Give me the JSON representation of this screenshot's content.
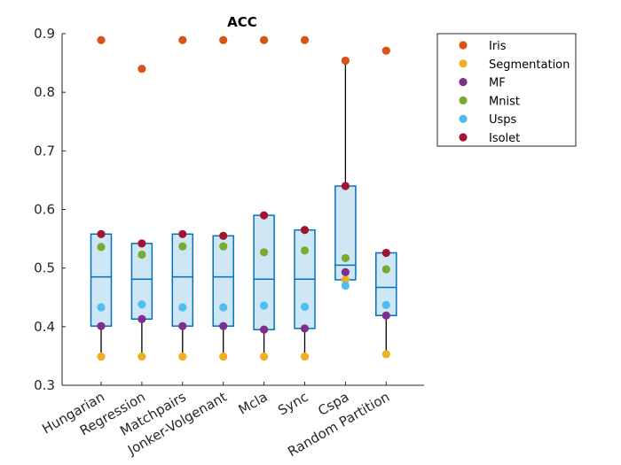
{
  "chart_data": {
    "type": "box+scatter",
    "title": "ACC",
    "xlabel": "",
    "ylabel": "",
    "ylim": [
      0.3,
      0.9
    ],
    "yticks": [
      "0.3",
      "0.4",
      "0.5",
      "0.6",
      "0.7",
      "0.8",
      "0.9"
    ],
    "categories": [
      "Hungarian",
      "Regression",
      "Matchpairs",
      "Jonker-Volgenant",
      "Mcla",
      "Sync",
      "Cspa",
      "Random Partition"
    ],
    "series": [
      {
        "name": "Iris",
        "color": "#D95319",
        "values": [
          0.889,
          0.84,
          0.889,
          0.889,
          0.889,
          0.889,
          0.854,
          0.871
        ]
      },
      {
        "name": "Segmentation",
        "color": "#EDB120",
        "values": [
          0.349,
          0.349,
          0.349,
          0.349,
          0.349,
          0.349,
          0.48,
          0.353
        ]
      },
      {
        "name": "MF",
        "color": "#7E2F8E",
        "values": [
          0.401,
          0.413,
          0.401,
          0.401,
          0.395,
          0.397,
          0.493,
          0.419
        ]
      },
      {
        "name": "Mnist",
        "color": "#77AC30",
        "values": [
          0.536,
          0.523,
          0.537,
          0.537,
          0.527,
          0.53,
          0.517,
          0.498
        ]
      },
      {
        "name": "Usps",
        "color": "#4DBEEE",
        "values": [
          0.433,
          0.438,
          0.433,
          0.433,
          0.436,
          0.434,
          0.47,
          0.437
        ]
      },
      {
        "name": "Isolet",
        "color": "#A2142F",
        "values": [
          0.558,
          0.542,
          0.558,
          0.555,
          0.59,
          0.565,
          0.64,
          0.526
        ]
      }
    ],
    "boxes": [
      {
        "q1": 0.401,
        "median": 0.485,
        "q3": 0.558,
        "whisker_low": 0.349,
        "whisker_high": 0.558
      },
      {
        "q1": 0.413,
        "median": 0.481,
        "q3": 0.542,
        "whisker_low": 0.349,
        "whisker_high": 0.542
      },
      {
        "q1": 0.401,
        "median": 0.485,
        "q3": 0.558,
        "whisker_low": 0.349,
        "whisker_high": 0.558
      },
      {
        "q1": 0.401,
        "median": 0.485,
        "q3": 0.555,
        "whisker_low": 0.349,
        "whisker_high": 0.555
      },
      {
        "q1": 0.395,
        "median": 0.481,
        "q3": 0.59,
        "whisker_low": 0.349,
        "whisker_high": 0.59
      },
      {
        "q1": 0.397,
        "median": 0.481,
        "q3": 0.565,
        "whisker_low": 0.349,
        "whisker_high": 0.565
      },
      {
        "q1": 0.48,
        "median": 0.505,
        "q3": 0.64,
        "whisker_low": 0.47,
        "whisker_high": 0.854
      },
      {
        "q1": 0.419,
        "median": 0.467,
        "q3": 0.526,
        "whisker_low": 0.353,
        "whisker_high": 0.526
      }
    ],
    "box_fill": "#CFE6F5",
    "box_stroke": "#0072BD",
    "whisker_color": "#000000",
    "grid": false,
    "legend_position": "right"
  }
}
